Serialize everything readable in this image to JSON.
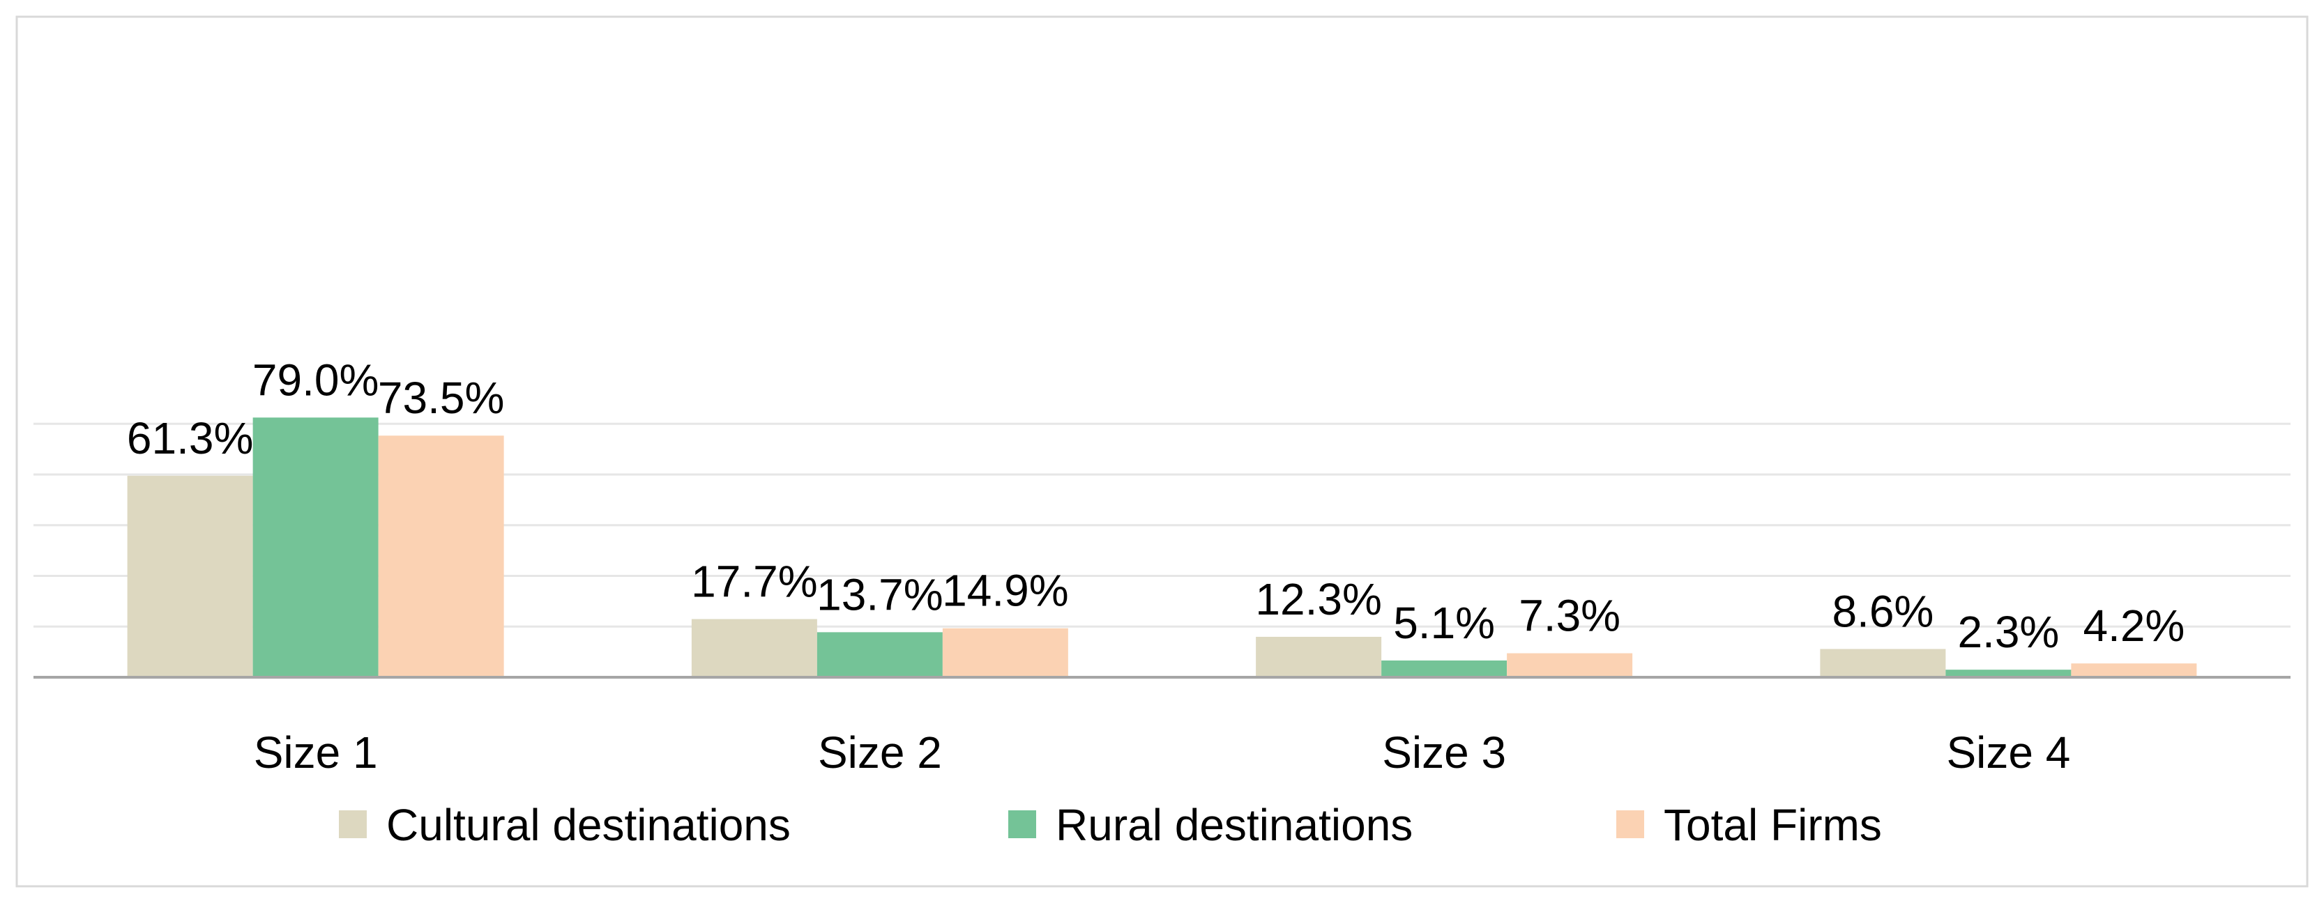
{
  "chart_data": {
    "type": "bar",
    "title": "",
    "xlabel": "",
    "ylabel": "",
    "ylim": [
      0,
      100
    ],
    "grid": true,
    "legend_position": "bottom",
    "categories": [
      "Size 1",
      "Size 2",
      "Size 3",
      "Size 4"
    ],
    "series": [
      {
        "name": "Cultural destinations",
        "color": "#ddd8c0",
        "values": [
          61.3,
          17.7,
          12.3,
          8.6
        ],
        "labels": [
          "61.3%",
          "17.7%",
          "12.3%",
          "8.6%"
        ]
      },
      {
        "name": "Rural destinations",
        "color": "#74c397",
        "values": [
          79.0,
          13.7,
          5.1,
          2.3
        ],
        "labels": [
          "79.0%",
          "13.7%",
          "5.1%",
          "2.3%"
        ]
      },
      {
        "name": "Total Firms",
        "color": "#fbd2b3",
        "values": [
          73.5,
          14.9,
          7.3,
          4.2
        ],
        "labels": [
          "73.5%",
          "14.9%",
          "7.3%",
          "4.2%"
        ]
      }
    ]
  }
}
